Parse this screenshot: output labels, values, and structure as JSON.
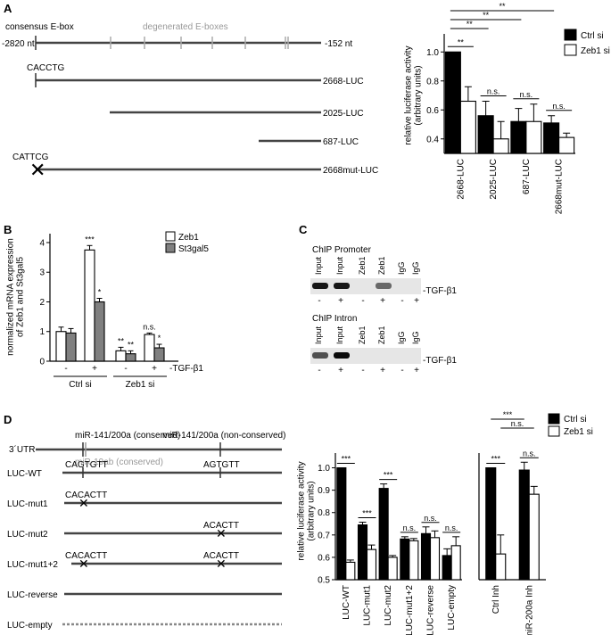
{
  "panels": {
    "A": {
      "label": "A",
      "construct": {
        "consensus_label": "consensus E-box",
        "degenerate_label": "degenerated E-boxes",
        "left_label": "-2820 nt",
        "right_label": "-152 nt",
        "lines": [
          {
            "label": "2668-LUC",
            "box": "CACCTG"
          },
          {
            "label": "2025-LUC",
            "box": ""
          },
          {
            "label": "687-LUC",
            "box": ""
          },
          {
            "label": "2668mut-LUC",
            "box": "CATTCG"
          }
        ]
      }
    },
    "B": {
      "label": "B"
    },
    "C": {
      "label": "C",
      "blots": [
        {
          "title": "ChIP Promoter",
          "lanes": [
            "Input",
            "Input",
            "Zeb1",
            "Zeb1",
            "IgG",
            "IgG"
          ],
          "tgf": [
            "-",
            "+",
            "-",
            "+",
            "-",
            "+"
          ],
          "tgf_label": "-TGF-β1"
        },
        {
          "title": "ChIP Intron",
          "lanes": [
            "Input",
            "Input",
            "Zeb1",
            "Zeb1",
            "IgG",
            "IgG"
          ],
          "tgf": [
            "-",
            "+",
            "-",
            "+",
            "-",
            "+"
          ],
          "tgf_label": "-TGF-β1"
        }
      ]
    },
    "D": {
      "label": "D",
      "construct": {
        "utr_label": "3´UTR",
        "site1_label": "miR-141/200a (conserved)",
        "site2_label": "miR-141/200a (non-conserved)",
        "mir19_label": "miR-19ab (conserved)",
        "rows": [
          {
            "label": "LUC-WT",
            "s1": "CAGTGTT",
            "s2": "AGTGTT",
            "x1": false,
            "x2": false
          },
          {
            "label": "LUC-mut1",
            "s1": "CACACTT",
            "s2": "",
            "x1": true,
            "x2": false
          },
          {
            "label": "LUC-mut2",
            "s1": "",
            "s2": "ACACTT",
            "x1": false,
            "x2": true
          },
          {
            "label": "LUC-mut1+2",
            "s1": "CACACTT",
            "s2": "ACACTT",
            "x1": true,
            "x2": true
          },
          {
            "label": "LUC-reverse",
            "s1": "",
            "s2": "",
            "x1": false,
            "x2": false
          },
          {
            "label": "LUC-empty",
            "s1": "",
            "s2": "",
            "x1": false,
            "x2": false
          }
        ]
      }
    }
  },
  "chart_data": [
    {
      "id": "A-luciferase",
      "type": "bar",
      "ylabel": "relative luciferase activity\n(arbitrary units)",
      "ylim": [
        0.3,
        1.1
      ],
      "yticks": [
        0.4,
        0.6,
        0.8,
        1.0
      ],
      "categories": [
        "2668-LUC",
        "2025-LUC",
        "687-LUC",
        "2668mut-LUC"
      ],
      "series": [
        {
          "name": "Ctrl si",
          "color": "#000000",
          "values": [
            1.0,
            0.56,
            0.52,
            0.51
          ],
          "errors": [
            0.0,
            0.1,
            0.09,
            0.05
          ]
        },
        {
          "name": "Zeb1 si",
          "color": "#ffffff",
          "values": [
            0.66,
            0.4,
            0.52,
            0.41
          ],
          "errors": [
            0.1,
            0.12,
            0.12,
            0.03
          ]
        }
      ],
      "pair_labels": [
        "**",
        "n.s.",
        "n.s.",
        "n.s."
      ],
      "brackets": [
        {
          "from": 0,
          "to": 1,
          "label": "**"
        },
        {
          "from": 0,
          "to": 2,
          "label": "**"
        },
        {
          "from": 0,
          "to": 3,
          "label": "**"
        }
      ],
      "legend": "top-right"
    },
    {
      "id": "B-mrna",
      "type": "bar",
      "ylabel": "normalized mRNA expression\nof Zeb1 and St3gal5",
      "ylim": [
        0,
        4.3
      ],
      "yticks": [
        0,
        1,
        2,
        3,
        4
      ],
      "groups": [
        {
          "name": "Ctrl si",
          "tgf": [
            "-",
            "+"
          ]
        },
        {
          "name": "Zeb1 si",
          "tgf": [
            "-",
            "+"
          ]
        }
      ],
      "tgf_label": "-TGF-β1",
      "series": [
        {
          "name": "Zeb1",
          "color": "#ffffff",
          "values": [
            1.0,
            3.75,
            0.35,
            0.9
          ],
          "errors": [
            0.15,
            0.15,
            0.12,
            0.05
          ],
          "sig": [
            "",
            "***",
            "**",
            "n.s."
          ]
        },
        {
          "name": "St3gal5",
          "color": "#808080",
          "values": [
            0.95,
            2.0,
            0.25,
            0.45
          ],
          "errors": [
            0.15,
            0.12,
            0.1,
            0.12
          ],
          "sig": [
            "",
            "*",
            "**",
            "*"
          ]
        }
      ],
      "legend": "top-right"
    },
    {
      "id": "D-luciferase",
      "type": "bar",
      "ylabel": "relative luciferase activity\n(arbitrary units)",
      "ylim": [
        0.5,
        1.05
      ],
      "yticks": [
        0.5,
        0.6,
        0.7,
        0.8,
        0.9,
        1.0
      ],
      "categories": [
        "LUC-WT",
        "LUC-mut1",
        "LUC-mut2",
        "LUC-mut1+2",
        "LUC-reverse",
        "LUC-empty"
      ],
      "series": [
        {
          "name": "Ctrl si",
          "color": "#000000",
          "values": [
            1.0,
            0.745,
            0.908,
            0.682,
            0.706,
            0.608
          ],
          "errors": [
            0.0,
            0.012,
            0.02,
            0.01,
            0.03,
            0.03
          ]
        },
        {
          "name": "Zeb1 si",
          "color": "#ffffff",
          "values": [
            0.578,
            0.635,
            0.6,
            0.674,
            0.688,
            0.652
          ],
          "errors": [
            0.01,
            0.02,
            0.008,
            0.01,
            0.03,
            0.04
          ]
        }
      ],
      "pair_labels": [
        "***",
        "***",
        "***",
        "n.s.",
        "n.s.",
        "n.s."
      ]
    },
    {
      "id": "D-inhibitor",
      "type": "bar",
      "ylim": [
        0.5,
        1.05
      ],
      "categories": [
        "Ctrl Inh",
        "miR-200a Inh"
      ],
      "series": [
        {
          "name": "Ctrl si",
          "color": "#000000",
          "values": [
            1.0,
            0.99
          ],
          "errors": [
            0.0,
            0.035
          ]
        },
        {
          "name": "Zeb1 si",
          "color": "#ffffff",
          "values": [
            0.615,
            0.882
          ],
          "errors": [
            0.085,
            0.035
          ]
        }
      ],
      "pair_labels": [
        "***",
        "n.s."
      ],
      "brackets": [
        {
          "a": [
            0,
            1
          ],
          "b": [
            1,
            1
          ],
          "label": "n.s."
        },
        {
          "a": [
            0,
            0
          ],
          "b": [
            1,
            0
          ],
          "label": "***"
        }
      ],
      "legend": "top-right"
    }
  ]
}
